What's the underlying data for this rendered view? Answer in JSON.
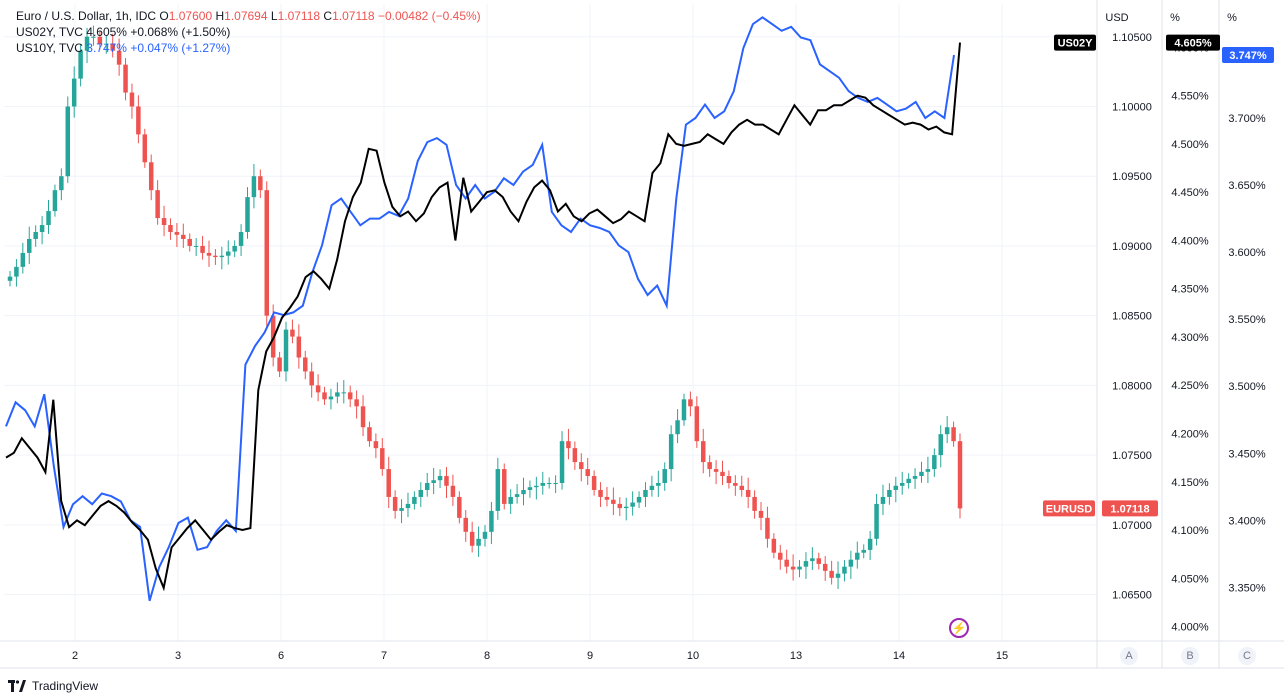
{
  "legend": {
    "main_symbol": "Euro / U.S. Dollar, 1h, IDC",
    "o_label": "O",
    "o_value": "1.07600",
    "h_label": "H",
    "h_value": "1.07694",
    "l_label": "L",
    "l_value": "1.07118",
    "c_label": "C",
    "c_value": "1.07118",
    "change": "−0.00482 (−0.45%)",
    "us02_label": "US02Y, TVC",
    "us02_value": "4.605%",
    "us02_change": "+0.068% (+1.50%)",
    "us10_label": "US10Y, TVC",
    "us10_value": "3.747%",
    "us10_change": "+0.047% (+1.27%)"
  },
  "axes": {
    "usd_title": "USD",
    "pct_title_b": "%",
    "pct_title_c": "%",
    "scale_a": "A",
    "scale_b": "B",
    "scale_c": "C"
  },
  "footer": {
    "brand": "TradingView"
  },
  "colors": {
    "up": "#26a69a",
    "down": "#ef5350",
    "us02y": "#000000",
    "us10y": "#2962ff",
    "grid": "#f0f3fa"
  },
  "chart_data": {
    "type": "line",
    "x_ticks": [
      "2",
      "3",
      "6",
      "7",
      "8",
      "9",
      "10",
      "13",
      "14",
      "15"
    ],
    "usd_axis": {
      "ticks": [
        "1.10500",
        "1.10000",
        "1.09500",
        "1.09000",
        "1.08500",
        "1.08000",
        "1.07500",
        "1.07000",
        "1.06500"
      ],
      "range": [
        1.06167,
        1.10735
      ]
    },
    "b_axis": {
      "ticks": [
        "4.600%",
        "4.550%",
        "4.500%",
        "4.450%",
        "4.400%",
        "4.350%",
        "4.300%",
        "4.250%",
        "4.200%",
        "4.150%",
        "4.100%",
        "4.050%",
        "4.000%"
      ],
      "range": [
        3.985,
        4.645
      ]
    },
    "c_axis": {
      "ticks": [
        "3.750%",
        "3.700%",
        "3.650%",
        "3.600%",
        "3.550%",
        "3.500%",
        "3.450%",
        "3.400%",
        "3.350%"
      ],
      "range": [
        3.31,
        3.785
      ]
    },
    "labels": {
      "us02y_tag": "US02Y",
      "us02y_last": "4.605%",
      "us10y_last": "3.747%",
      "eurusd_tag": "EURUSD",
      "eurusd_last": "1.07118"
    },
    "series": [
      {
        "name": "EURUSD",
        "kind": "candlestick",
        "close_path": [
          1.0878,
          1.0885,
          1.0895,
          1.0905,
          1.091,
          1.0915,
          1.0925,
          1.094,
          1.095,
          1.1,
          1.102,
          1.104,
          1.105,
          1.105,
          1.1045,
          1.1045,
          1.104,
          1.103,
          1.101,
          1.1,
          1.098,
          1.096,
          1.094,
          1.092,
          1.0915,
          1.091,
          1.0908,
          1.0905,
          1.09,
          1.09,
          1.0895,
          1.0893,
          1.0892,
          1.0893,
          1.0896,
          1.09,
          1.091,
          1.0935,
          1.095,
          1.094,
          1.085,
          1.082,
          1.081,
          1.084,
          1.0835,
          1.082,
          1.081,
          1.08,
          1.0795,
          1.079,
          1.0792,
          1.0795,
          1.0795,
          1.079,
          1.0785,
          1.077,
          1.076,
          1.0755,
          1.074,
          1.072,
          1.071,
          1.0712,
          1.0715,
          1.072,
          1.0725,
          1.073,
          1.0732,
          1.0735,
          1.0728,
          1.072,
          1.0705,
          1.0695,
          1.0685,
          1.069,
          1.0695,
          1.071,
          1.074,
          1.0715,
          1.072,
          1.0722,
          1.0725,
          1.0727,
          1.0728,
          1.073,
          1.073,
          1.073,
          1.076,
          1.0755,
          1.0745,
          1.074,
          1.0735,
          1.0725,
          1.072,
          1.0718,
          1.0715,
          1.0712,
          1.0713,
          1.0716,
          1.072,
          1.0725,
          1.0728,
          1.073,
          1.074,
          1.0765,
          1.0775,
          1.079,
          1.0785,
          1.076,
          1.0745,
          1.074,
          1.0738,
          1.0735,
          1.073,
          1.0728,
          1.0725,
          1.072,
          1.071,
          1.0705,
          1.069,
          1.068,
          1.0675,
          1.067,
          1.0668,
          1.067,
          1.0674,
          1.0676,
          1.0672,
          1.0667,
          1.0662,
          1.0665,
          1.067,
          1.0675,
          1.068,
          1.0682,
          1.069,
          1.0715,
          1.072,
          1.0725,
          1.0728,
          1.073,
          1.0733,
          1.0735,
          1.0738,
          1.074,
          1.075,
          1.0765,
          1.077,
          1.076,
          1.07118
        ],
        "open_first": 1.0875,
        "high_max": 1.1028,
        "low_min": 1.0655
      },
      {
        "name": "US02Y",
        "kind": "line",
        "values_b": [
          4.175,
          4.18,
          4.195,
          4.185,
          4.175,
          4.16,
          4.235,
          4.13,
          4.103,
          4.11,
          4.105,
          4.115,
          4.125,
          4.13,
          4.125,
          4.118,
          4.108,
          4.1,
          4.09,
          4.06,
          4.04,
          4.082,
          4.092,
          4.102,
          4.11,
          4.1,
          4.09,
          4.098,
          4.105,
          4.102,
          4.1,
          4.102,
          4.245,
          4.285,
          4.3,
          4.32,
          4.33,
          4.342,
          4.362,
          4.368,
          4.36,
          4.35,
          4.38,
          4.42,
          4.445,
          4.46,
          4.495,
          4.493,
          4.46,
          4.435,
          4.425,
          4.43,
          4.42,
          4.428,
          4.445,
          4.455,
          4.46,
          4.4,
          4.465,
          4.43,
          4.44,
          4.45,
          4.452,
          4.445,
          4.43,
          4.42,
          4.44,
          4.455,
          4.462,
          4.452,
          4.43,
          4.438,
          4.425,
          4.42,
          4.428,
          4.432,
          4.425,
          4.418,
          4.422,
          4.43,
          4.425,
          4.42,
          4.47,
          4.48,
          4.51,
          4.5,
          4.498,
          4.5,
          4.502,
          4.51,
          4.505,
          4.5,
          4.512,
          4.52,
          4.525,
          4.52,
          4.52,
          4.515,
          4.51,
          4.525,
          4.54,
          4.53,
          4.52,
          4.535,
          4.535,
          4.54,
          4.54,
          4.545,
          4.55,
          4.548,
          4.54,
          4.535,
          4.53,
          4.525,
          4.52,
          4.522,
          4.52,
          4.515,
          4.518,
          4.512,
          4.51,
          4.605
        ]
      },
      {
        "name": "US10Y",
        "kind": "line",
        "values_c": [
          3.47,
          3.488,
          3.482,
          3.47,
          3.494,
          3.44,
          3.395,
          3.412,
          3.418,
          3.412,
          3.42,
          3.418,
          3.414,
          3.4,
          3.395,
          3.34,
          3.365,
          3.38,
          3.398,
          3.402,
          3.378,
          3.38,
          3.392,
          3.4,
          3.392,
          3.516,
          3.53,
          3.54,
          3.555,
          3.553,
          3.555,
          3.56,
          3.585,
          3.605,
          3.635,
          3.64,
          3.63,
          3.62,
          3.625,
          3.625,
          3.63,
          3.627,
          3.64,
          3.668,
          3.682,
          3.685,
          3.68,
          3.65,
          3.64,
          3.65,
          3.64,
          3.645,
          3.655,
          3.65,
          3.66,
          3.665,
          3.68,
          3.63,
          3.62,
          3.615,
          3.625,
          3.62,
          3.618,
          3.615,
          3.605,
          3.6,
          3.58,
          3.568,
          3.575,
          3.56,
          3.64,
          3.695,
          3.7,
          3.71,
          3.7,
          3.705,
          3.72,
          3.752,
          3.77,
          3.775,
          3.77,
          3.765,
          3.768,
          3.76,
          3.758,
          3.74,
          3.735,
          3.73,
          3.72,
          3.715,
          3.712,
          3.715,
          3.71,
          3.705,
          3.707,
          3.712,
          3.7,
          3.705,
          3.7,
          3.747
        ]
      }
    ]
  }
}
